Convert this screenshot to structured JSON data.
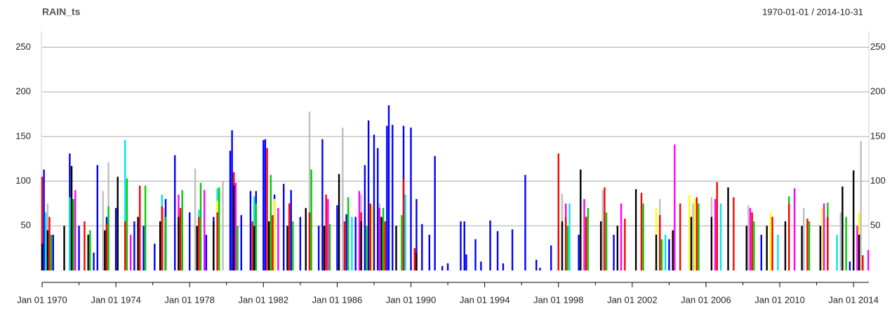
{
  "chart_data": {
    "type": "bar",
    "title": "RAIN_ts",
    "subtitle": "1970-01-01 / 2014-10-31",
    "xlim": [
      1970,
      2014.83
    ],
    "ylim": [
      0,
      266
    ],
    "yticks": [
      50,
      100,
      150,
      200,
      250
    ],
    "grid": true,
    "xticks": [
      {
        "value": 1970,
        "label": "Jan 01 1970"
      },
      {
        "value": 1974,
        "label": "Jan 01 1974"
      },
      {
        "value": 1978,
        "label": "Jan 01 1978"
      },
      {
        "value": 1982,
        "label": "Jan 01 1982"
      },
      {
        "value": 1986,
        "label": "Jan 01 1986"
      },
      {
        "value": 1990,
        "label": "Jan 01 1990"
      },
      {
        "value": 1994,
        "label": "Jan 01 1994"
      },
      {
        "value": 1998,
        "label": "Jan 01 1998"
      },
      {
        "value": 2002,
        "label": "Jan 01 2002"
      },
      {
        "value": 2006,
        "label": "Jan 01 2006"
      },
      {
        "value": 2010,
        "label": "Jan 01 2010"
      },
      {
        "value": 2014,
        "label": "Jan 01 2014"
      }
    ],
    "xticks_minor": [
      1972,
      1976,
      1980,
      1984,
      1988,
      1992,
      1996,
      2000,
      2004,
      2008,
      2012
    ],
    "series": [
      {
        "color": "#0000ff",
        "x": [
          1970.1,
          1970.6,
          1971.5,
          1972.0,
          1972.8,
          1973.0,
          1973.5,
          1974.0,
          1975.0,
          1975.5,
          1976.1,
          1976.7,
          1977.2,
          1977.6,
          1978.0,
          1978.9,
          1979.3,
          1980.2,
          1980.3,
          1980.8,
          1981.3,
          1981.6,
          1982.0,
          1982.1,
          1982.6,
          1983.1,
          1983.5,
          1984.0,
          1985.0,
          1985.2,
          1986.0,
          1986.5,
          1987.0,
          1987.5,
          1987.7,
          1988.0,
          1988.2,
          1988.7,
          1988.8,
          1989.0,
          1989.6,
          1990.0,
          1990.3,
          1990.6,
          1991.0,
          1991.3,
          1991.7,
          1992.0,
          1992.7,
          1992.9,
          1993.0,
          1993.5,
          1993.8,
          1994.3,
          1994.7,
          1995.0,
          1995.5,
          1996.2,
          1996.8,
          1997.0,
          1997.6,
          1998.0,
          1999.1,
          2001.0,
          2004.0,
          2009.0,
          2013.8
        ],
        "values": [
          113,
          40,
          131,
          50,
          20,
          118,
          60,
          70,
          55,
          50,
          30,
          80,
          129,
          40,
          65,
          40,
          60,
          134,
          157,
          62,
          89,
          89,
          146,
          147,
          85,
          97,
          90,
          60,
          50,
          147,
          73,
          63,
          60,
          118,
          168,
          152,
          137,
          162,
          185,
          163,
          162,
          160,
          80,
          52,
          40,
          128,
          5,
          8,
          55,
          55,
          18,
          35,
          10,
          56,
          44,
          8,
          46,
          107,
          12,
          3,
          28,
          45,
          40,
          40,
          35,
          40,
          10
        ]
      },
      {
        "color": "#bebebe",
        "x": [
          1970.3,
          1971.8,
          1973.3,
          1973.6,
          1976.6,
          1978.3,
          1979.8,
          1984.5,
          1986.3,
          1987.3,
          1988.3,
          1998.2,
          2000.4,
          2003.5,
          2005.3,
          2006.3,
          2008.3,
          2011.3,
          2013.3,
          2014.4
        ],
        "values": [
          75,
          68,
          89,
          121,
          70,
          114,
          100,
          178,
          160,
          85,
          75,
          86,
          90,
          80,
          75,
          82,
          73,
          70,
          65,
          145
        ]
      },
      {
        "color": "#00e5ee",
        "x": [
          1970.2,
          1971.5,
          1974.1,
          1974.5,
          1976.5,
          1978.5,
          1979.5,
          1981.5,
          1982.5,
          1986.8,
          1989.7,
          1998.6,
          2000.6,
          2003.8,
          2005.6,
          2006.8,
          2009.9,
          2013.1
        ],
        "values": [
          65,
          82,
          75,
          146,
          85,
          68,
          92,
          83,
          60,
          60,
          85,
          75,
          50,
          40,
          52,
          75,
          40,
          40
        ]
      },
      {
        "color": "#ff00ff",
        "x": [
          1971.8,
          1974.8,
          1977.4,
          1978.8,
          1980.5,
          1982.8,
          1985.5,
          1987.2,
          1988.3,
          1998.4,
          1999.4,
          2001.4,
          2004.3,
          2006.5,
          2008.4,
          2010.8,
          2012.4,
          2014.2,
          2014.8
        ],
        "values": [
          90,
          40,
          85,
          90,
          98,
          70,
          80,
          89,
          70,
          75,
          80,
          75,
          141,
          80,
          70,
          92,
          75,
          50,
          23
        ]
      },
      {
        "color": "#ffff00",
        "x": [
          1979.5,
          1982.6,
          1987.9,
          1988.5,
          2003.3,
          2005.1,
          2005.4,
          2009.5,
          2012.3,
          2014.3
        ],
        "values": [
          78,
          80,
          73,
          60,
          70,
          85,
          80,
          65,
          70,
          65
        ]
      },
      {
        "color": "#00cd00",
        "x": [
          1970.5,
          1971.7,
          1972.6,
          1973.6,
          1974.6,
          1975.6,
          1976.7,
          1977.6,
          1978.6,
          1979.6,
          1980.6,
          1981.6,
          1982.4,
          1983.6,
          1984.6,
          1985.6,
          1986.6,
          1987.6,
          1988.5,
          1989.5,
          1998.5,
          1999.6,
          2000.6,
          2002.6,
          2003.6,
          2005.6,
          2006.6,
          2008.6,
          2010.5,
          2011.6,
          2012.6,
          2013.6
        ],
        "values": [
          40,
          80,
          45,
          72,
          103,
          95,
          60,
          90,
          98,
          93,
          50,
          75,
          107,
          55,
          113,
          52,
          82,
          50,
          70,
          62,
          50,
          70,
          65,
          75,
          35,
          75,
          60,
          55,
          83,
          55,
          76,
          60
        ]
      },
      {
        "color": "#ff0000",
        "x": [
          1970.0,
          1970.4,
          1971.6,
          1972.3,
          1973.5,
          1974.5,
          1975.3,
          1976.5,
          1977.5,
          1978.5,
          1979.5,
          1980.4,
          1981.4,
          1982.2,
          1982.5,
          1983.4,
          1984.5,
          1985.4,
          1986.4,
          1987.3,
          1987.8,
          1988.6,
          1989.6,
          1990.2,
          1998.0,
          1998.4,
          1999.5,
          2000.5,
          2001.6,
          2002.5,
          2003.5,
          2004.6,
          2005.5,
          2006.6,
          2007.5,
          2008.5,
          2009.6,
          2010.5,
          2011.5,
          2012.6,
          2014.0,
          2014.5
        ],
        "values": [
          105,
          60,
          80,
          55,
          52,
          55,
          95,
          72,
          70,
          60,
          65,
          110,
          55,
          137,
          62,
          75,
          65,
          85,
          55,
          65,
          75,
          55,
          102,
          25,
          131,
          60,
          60,
          93,
          58,
          87,
          62,
          75,
          82,
          99,
          82,
          65,
          60,
          75,
          58,
          60,
          52,
          17
        ]
      },
      {
        "color": "#000000",
        "x": [
          1970.0,
          1970.3,
          1971.2,
          1971.6,
          1972.5,
          1973.4,
          1974.1,
          1975.2,
          1976.4,
          1977.4,
          1978.4,
          1979.3,
          1980.4,
          1981.5,
          1982.3,
          1983.3,
          1984.3,
          1985.3,
          1986.1,
          1987.3,
          1988.4,
          1989.2,
          1990.3,
          1998.2,
          1999.2,
          2000.3,
          2001.2,
          2002.2,
          2003.3,
          2004.2,
          2005.2,
          2006.3,
          2007.2,
          2008.2,
          2009.3,
          2010.3,
          2011.2,
          2012.2,
          2013.4,
          2014.0,
          2014.3
        ],
        "values": [
          30,
          45,
          50,
          117,
          40,
          45,
          105,
          60,
          55,
          60,
          50,
          55,
          95,
          50,
          55,
          50,
          70,
          50,
          108,
          55,
          60,
          50,
          20,
          55,
          113,
          55,
          50,
          91,
          40,
          45,
          60,
          60,
          93,
          50,
          50,
          55,
          50,
          50,
          94,
          112,
          40
        ]
      }
    ]
  }
}
